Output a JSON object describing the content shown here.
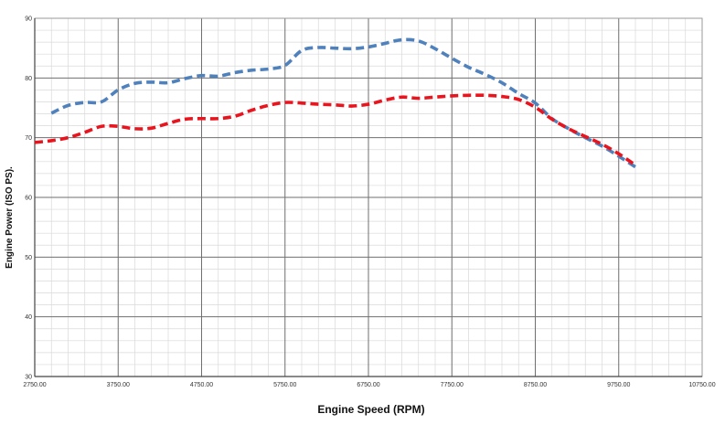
{
  "chart_data": {
    "type": "line",
    "title": "",
    "xlabel": "Engine Speed (RPM)",
    "ylabel": "Engine Power (ISO PS).",
    "xlim": [
      2750,
      10750
    ],
    "ylim": [
      30,
      90
    ],
    "x_ticks": [
      2750,
      3750,
      4750,
      5750,
      6750,
      7750,
      8750,
      9750,
      10750
    ],
    "x_tick_labels": [
      "2750.00",
      "3750.00",
      "4750.00",
      "5750.00",
      "6750.00",
      "7750.00",
      "8750.00",
      "9750.00",
      "10750.00"
    ],
    "y_ticks": [
      30,
      40,
      50,
      60,
      70,
      80,
      90
    ],
    "y_tick_labels": [
      "30",
      "40",
      "50",
      "60",
      "70",
      "80",
      "90"
    ],
    "major_grid": true,
    "minor_grid": true,
    "legend": "none",
    "series": [
      {
        "color": "#4f81bd",
        "style": "dashed",
        "x": [
          2950,
          3150,
          3350,
          3550,
          3750,
          3950,
          4150,
          4350,
          4550,
          4750,
          4950,
          5150,
          5350,
          5550,
          5750,
          5950,
          6150,
          6350,
          6550,
          6750,
          6950,
          7150,
          7350,
          7550,
          7750,
          7950,
          8150,
          8350,
          8550,
          8750,
          8950,
          9150,
          9350,
          9550,
          9750,
          9950
        ],
        "values": [
          74.1,
          75.4,
          75.9,
          76.0,
          78.0,
          79.1,
          79.3,
          79.2,
          79.9,
          80.4,
          80.3,
          80.9,
          81.3,
          81.5,
          82.1,
          84.6,
          85.1,
          85.0,
          84.9,
          85.2,
          85.8,
          86.4,
          86.2,
          84.9,
          83.3,
          81.8,
          80.6,
          79.2,
          77.4,
          75.8,
          73.2,
          71.5,
          70.0,
          68.6,
          66.9,
          65.1
        ]
      },
      {
        "color": "#e8141e",
        "style": "dashed",
        "x": [
          2750,
          2950,
          3150,
          3350,
          3550,
          3750,
          3950,
          4150,
          4350,
          4550,
          4750,
          4950,
          5150,
          5350,
          5550,
          5750,
          5950,
          6150,
          6350,
          6550,
          6750,
          6950,
          7150,
          7350,
          7550,
          7750,
          7950,
          8150,
          8350,
          8550,
          8750,
          8950,
          9150,
          9350,
          9550,
          9750,
          9950
        ],
        "values": [
          69.2,
          69.5,
          70.0,
          70.9,
          71.9,
          71.9,
          71.5,
          71.6,
          72.4,
          73.1,
          73.2,
          73.2,
          73.6,
          74.6,
          75.4,
          75.9,
          75.8,
          75.6,
          75.5,
          75.3,
          75.6,
          76.3,
          76.8,
          76.6,
          76.8,
          77.0,
          77.1,
          77.1,
          76.9,
          76.4,
          75.1,
          73.1,
          71.5,
          70.2,
          68.9,
          67.3,
          65.4
        ]
      }
    ]
  }
}
